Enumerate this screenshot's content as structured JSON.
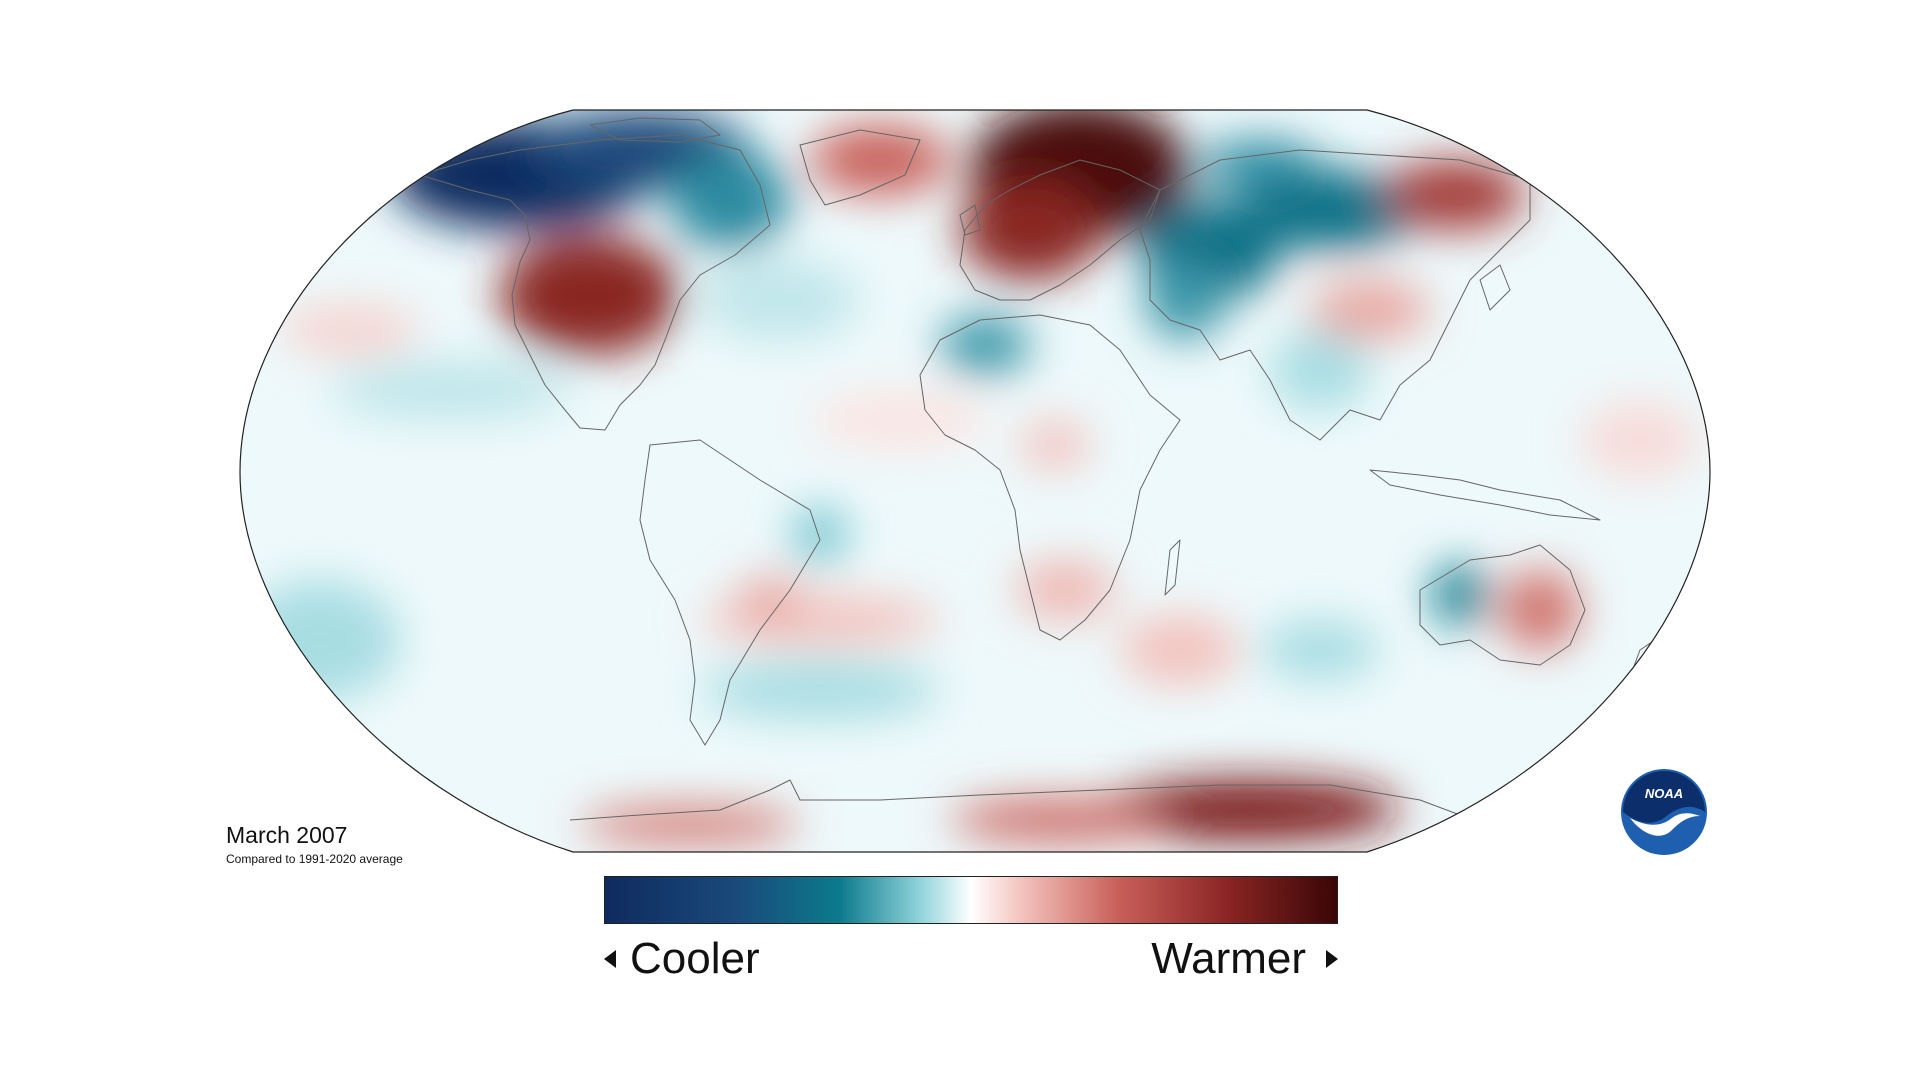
{
  "map": {
    "title": "March 2007",
    "subtitle": "Compared to 1991-2020 average",
    "projection": "Robinson",
    "colors": {
      "cold_extreme": "#0f2a5e",
      "cold_strong": "#0c6f86",
      "cold_mild": "#a7dde2",
      "neutral": "#ffffff",
      "warm_mild": "#f3c2bd",
      "warm_strong": "#b94a44",
      "warm_extreme": "#4a0a0a",
      "coastline": "#666666"
    }
  },
  "legend": {
    "cooler_label": "Cooler",
    "warmer_label": "Warmer",
    "left_arrow_icon": "triangle-left-icon",
    "right_arrow_icon": "triangle-right-icon"
  },
  "logo": {
    "text": "NOAA",
    "icon": "noaa-logo-icon",
    "colors": {
      "outer": "#1f5fb0",
      "inner": "#0c2f6b",
      "bird": "#ffffff"
    }
  }
}
